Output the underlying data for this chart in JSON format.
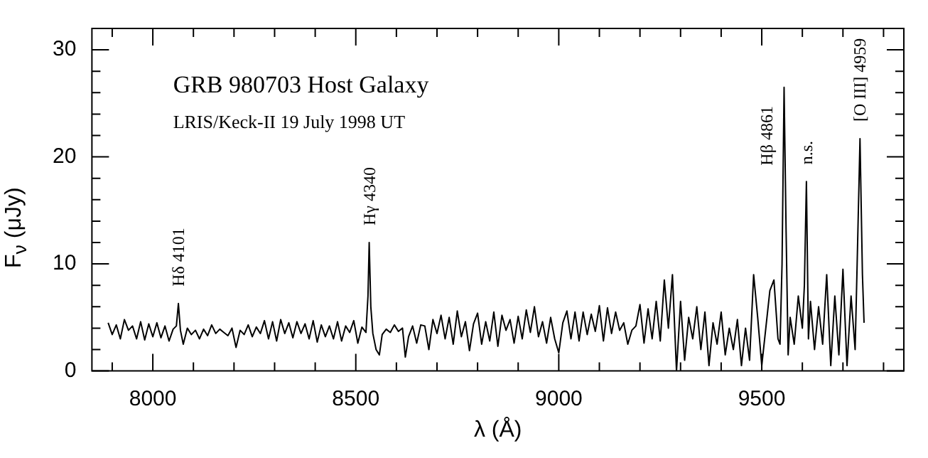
{
  "chart_data": {
    "type": "line",
    "title": "GRB 980703 Host Galaxy",
    "subtitle": "LRIS/Keck-II 19 July 1998 UT",
    "xlabel": "λ (Å)",
    "ylabel": "F$_{ν}$ (μJy)",
    "xlim": [
      7850,
      9850
    ],
    "ylim": [
      0,
      32
    ],
    "xticks": [
      {
        "value": 7900,
        "label": null
      },
      8000,
      {
        "value": 8100,
        "label": null
      },
      {
        "value": 8200,
        "label": null
      },
      {
        "value": 8300,
        "label": null
      },
      {
        "value": 8400,
        "label": null
      },
      8500,
      {
        "value": 8600,
        "label": null
      },
      {
        "value": 8700,
        "label": null
      },
      {
        "value": 8800,
        "label": null
      },
      {
        "value": 8900,
        "label": null
      },
      9000,
      {
        "value": 9100,
        "label": null
      },
      {
        "value": 9200,
        "label": null
      },
      {
        "value": 9300,
        "label": null
      },
      {
        "value": 9400,
        "label": null
      },
      9500,
      {
        "value": 9600,
        "label": null
      },
      {
        "value": 9700,
        "label": null
      },
      {
        "value": 9800,
        "label": null
      }
    ],
    "yticks": [
      0,
      {
        "value": 2,
        "label": null
      },
      {
        "value": 4,
        "label": null
      },
      {
        "value": 6,
        "label": null
      },
      {
        "value": 8,
        "label": null
      },
      10,
      {
        "value": 12,
        "label": null
      },
      {
        "value": 14,
        "label": null
      },
      {
        "value": 16,
        "label": null
      },
      {
        "value": 18,
        "label": null
      },
      20,
      {
        "value": 22,
        "label": null
      },
      {
        "value": 24,
        "label": null
      },
      {
        "value": 26,
        "label": null
      },
      {
        "value": 28,
        "label": null
      },
      30
    ],
    "grid": false,
    "legend": false,
    "marker": "none",
    "line_style": "solid",
    "annotations": [
      {
        "text": "Hδ 4101",
        "x": 8063,
        "y": 6.3
      },
      {
        "text": "Hγ 4340",
        "x": 8533,
        "y": 12.0
      },
      {
        "text": "Hβ 4861",
        "x": 9555,
        "y": 26.5
      },
      {
        "text": "n.s.",
        "x": 9610,
        "y": 17.7
      },
      {
        "text": "[O III] 4959",
        "x": 9742,
        "y": 21.7
      }
    ],
    "series": [
      {
        "color": "#000000",
        "x": [
          7890,
          7900,
          7910,
          7920,
          7930,
          7940,
          7950,
          7960,
          7970,
          7980,
          7990,
          8000,
          8010,
          8020,
          8030,
          8040,
          8050,
          8058,
          8063,
          8068,
          8075,
          8085,
          8095,
          8105,
          8115,
          8125,
          8135,
          8145,
          8155,
          8165,
          8175,
          8185,
          8195,
          8205,
          8215,
          8225,
          8235,
          8245,
          8255,
          8265,
          8275,
          8285,
          8295,
          8305,
          8315,
          8325,
          8335,
          8345,
          8355,
          8365,
          8375,
          8385,
          8395,
          8405,
          8415,
          8425,
          8435,
          8445,
          8455,
          8465,
          8475,
          8485,
          8495,
          8505,
          8515,
          8525,
          8530,
          8533,
          8537,
          8542,
          8550,
          8558,
          8565,
          8575,
          8585,
          8595,
          8605,
          8615,
          8622,
          8630,
          8640,
          8650,
          8660,
          8670,
          8680,
          8690,
          8700,
          8710,
          8720,
          8730,
          8740,
          8750,
          8760,
          8770,
          8780,
          8790,
          8800,
          8810,
          8820,
          8830,
          8840,
          8850,
          8860,
          8870,
          8880,
          8890,
          8900,
          8910,
          8920,
          8930,
          8940,
          8950,
          8960,
          8970,
          8980,
          8990,
          9000,
          9010,
          9020,
          9030,
          9040,
          9050,
          9060,
          9070,
          9080,
          9090,
          9100,
          9110,
          9120,
          9130,
          9140,
          9150,
          9160,
          9170,
          9180,
          9190,
          9200,
          9210,
          9220,
          9230,
          9240,
          9250,
          9260,
          9270,
          9280,
          9290,
          9300,
          9310,
          9320,
          9330,
          9340,
          9350,
          9360,
          9370,
          9380,
          9390,
          9400,
          9410,
          9420,
          9430,
          9440,
          9450,
          9460,
          9470,
          9480,
          9490,
          9500,
          9510,
          9520,
          9530,
          9540,
          9545,
          9550,
          9555,
          9560,
          9565,
          9570,
          9580,
          9590,
          9600,
          9605,
          9610,
          9615,
          9620,
          9630,
          9640,
          9650,
          9660,
          9670,
          9680,
          9690,
          9700,
          9710,
          9720,
          9730,
          9735,
          9742,
          9748,
          9752
        ],
        "values": [
          4.5,
          3.4,
          4.3,
          3.0,
          4.8,
          3.8,
          4.2,
          3.0,
          4.6,
          2.9,
          4.4,
          3.2,
          4.5,
          3.1,
          4.2,
          2.8,
          3.9,
          4.2,
          6.3,
          3.8,
          2.5,
          4.0,
          3.4,
          3.8,
          3.0,
          3.9,
          3.3,
          4.3,
          3.5,
          3.9,
          3.6,
          3.3,
          4.0,
          2.2,
          3.8,
          3.4,
          4.3,
          3.2,
          4.1,
          3.5,
          4.7,
          3.0,
          4.6,
          2.8,
          4.8,
          3.5,
          4.5,
          3.1,
          4.6,
          3.5,
          4.4,
          3.0,
          4.7,
          2.7,
          4.3,
          3.2,
          4.2,
          3.0,
          4.6,
          2.8,
          4.2,
          3.6,
          4.7,
          2.6,
          4.1,
          3.6,
          7.0,
          12.0,
          6.0,
          3.5,
          2.0,
          1.5,
          3.4,
          3.9,
          3.6,
          4.3,
          3.7,
          4.0,
          1.3,
          3.2,
          4.2,
          2.6,
          4.3,
          4.2,
          2.0,
          4.8,
          3.5,
          5.2,
          3.0,
          5.0,
          2.5,
          5.6,
          3.2,
          4.6,
          1.9,
          4.4,
          5.4,
          2.5,
          4.6,
          2.8,
          5.5,
          2.3,
          5.2,
          3.8,
          4.8,
          2.6,
          5.1,
          3.0,
          5.7,
          3.6,
          6.0,
          3.2,
          4.6,
          2.6,
          5.0,
          3.0,
          1.7,
          4.5,
          5.6,
          3.0,
          5.5,
          2.8,
          5.5,
          3.4,
          5.3,
          3.7,
          6.1,
          2.8,
          5.9,
          3.5,
          5.5,
          3.8,
          4.5,
          2.5,
          3.8,
          4.2,
          6.2,
          2.6,
          5.8,
          3.0,
          6.5,
          2.8,
          8.5,
          4.0,
          9.0,
          0.0,
          6.5,
          1.0,
          5.0,
          3.0,
          6.0,
          2.0,
          5.5,
          0.5,
          4.5,
          2.5,
          5.5,
          1.5,
          4.0,
          2.0,
          4.8,
          0.5,
          4.0,
          1.0,
          9.0,
          5.0,
          0.5,
          4.0,
          7.5,
          8.5,
          3.0,
          2.5,
          10.0,
          26.5,
          13.0,
          1.5,
          5.0,
          2.5,
          7.0,
          4.0,
          8.0,
          17.7,
          3.0,
          6.5,
          2.0,
          6.0,
          2.5,
          9.0,
          0.5,
          7.0,
          1.5,
          9.5,
          0.5,
          7.0,
          2.0,
          10.0,
          21.7,
          9.0,
          4.5
        ]
      }
    ]
  }
}
